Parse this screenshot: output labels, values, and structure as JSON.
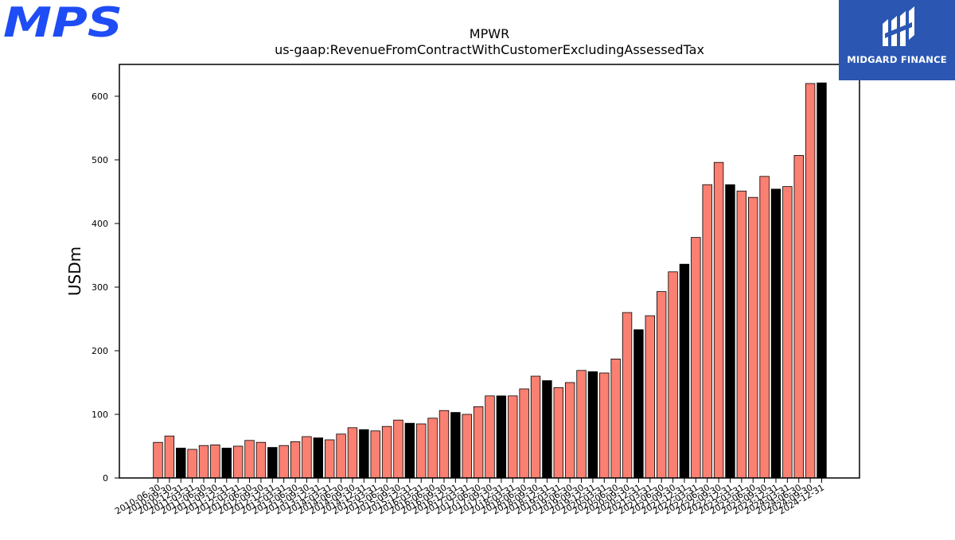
{
  "logos": {
    "left": "MPS",
    "right": "MIDGARD FINANCE"
  },
  "colors": {
    "bar_default": "#fa8072",
    "bar_highlight": "#000000",
    "logo_left": "#1e4cf5",
    "logo_right_bg": "#2b57b3"
  },
  "chart_data": {
    "type": "bar",
    "title": "MPWR",
    "subtitle": "us-gaap:RevenueFromContractWithCustomerExcludingAssessedTax",
    "xlabel": "",
    "ylabel": "USDm",
    "ylim": [
      0,
      650
    ],
    "yticks": [
      0,
      100,
      200,
      300,
      400,
      500,
      600
    ],
    "grid": false,
    "categories": [
      "2010-06-30",
      "2010-09-30",
      "2010-12-31",
      "2011-03-31",
      "2011-06-30",
      "2011-09-30",
      "2011-12-31",
      "2012-03-31",
      "2012-06-30",
      "2012-09-30",
      "2012-12-31",
      "2013-03-31",
      "2013-06-30",
      "2013-09-30",
      "2013-12-31",
      "2014-03-31",
      "2014-06-30",
      "2014-09-30",
      "2014-12-31",
      "2015-03-31",
      "2015-06-30",
      "2015-09-30",
      "2015-12-31",
      "2016-03-31",
      "2016-06-30",
      "2016-09-30",
      "2016-12-31",
      "2017-03-31",
      "2017-06-30",
      "2017-09-30",
      "2017-12-31",
      "2018-03-31",
      "2018-06-30",
      "2018-09-30",
      "2018-12-31",
      "2019-03-31",
      "2019-06-30",
      "2019-09-30",
      "2019-12-31",
      "2020-03-31",
      "2020-06-30",
      "2020-09-30",
      "2020-12-31",
      "2021-03-31",
      "2021-06-30",
      "2021-09-30",
      "2021-12-31",
      "2022-03-31",
      "2022-06-30",
      "2022-09-30",
      "2022-12-31",
      "2023-03-31",
      "2023-06-30",
      "2023-09-30",
      "2023-12-31",
      "2024-03-31",
      "2024-06-30",
      "2024-09-30",
      "2024-12-31"
    ],
    "values": [
      56,
      66,
      47,
      45,
      51,
      52,
      47,
      50,
      59,
      56,
      48,
      51,
      57,
      65,
      63,
      60,
      69,
      79,
      76,
      74,
      81,
      91,
      86,
      85,
      94,
      106,
      103,
      100,
      112,
      129,
      129,
      129,
      140,
      160,
      153,
      142,
      150,
      169,
      167,
      165,
      187,
      260,
      233,
      255,
      293,
      324,
      336,
      378,
      461,
      496,
      461,
      451,
      441,
      474,
      454,
      458,
      507,
      620,
      621
    ],
    "highlight": [
      false,
      false,
      true,
      false,
      false,
      false,
      true,
      false,
      false,
      false,
      true,
      false,
      false,
      false,
      true,
      false,
      false,
      false,
      true,
      false,
      false,
      false,
      true,
      false,
      false,
      false,
      true,
      false,
      false,
      false,
      true,
      false,
      false,
      false,
      true,
      false,
      false,
      false,
      true,
      false,
      false,
      false,
      true,
      false,
      false,
      false,
      true,
      false,
      false,
      false,
      true,
      false,
      false,
      false,
      true,
      false,
      false,
      false,
      true
    ]
  }
}
